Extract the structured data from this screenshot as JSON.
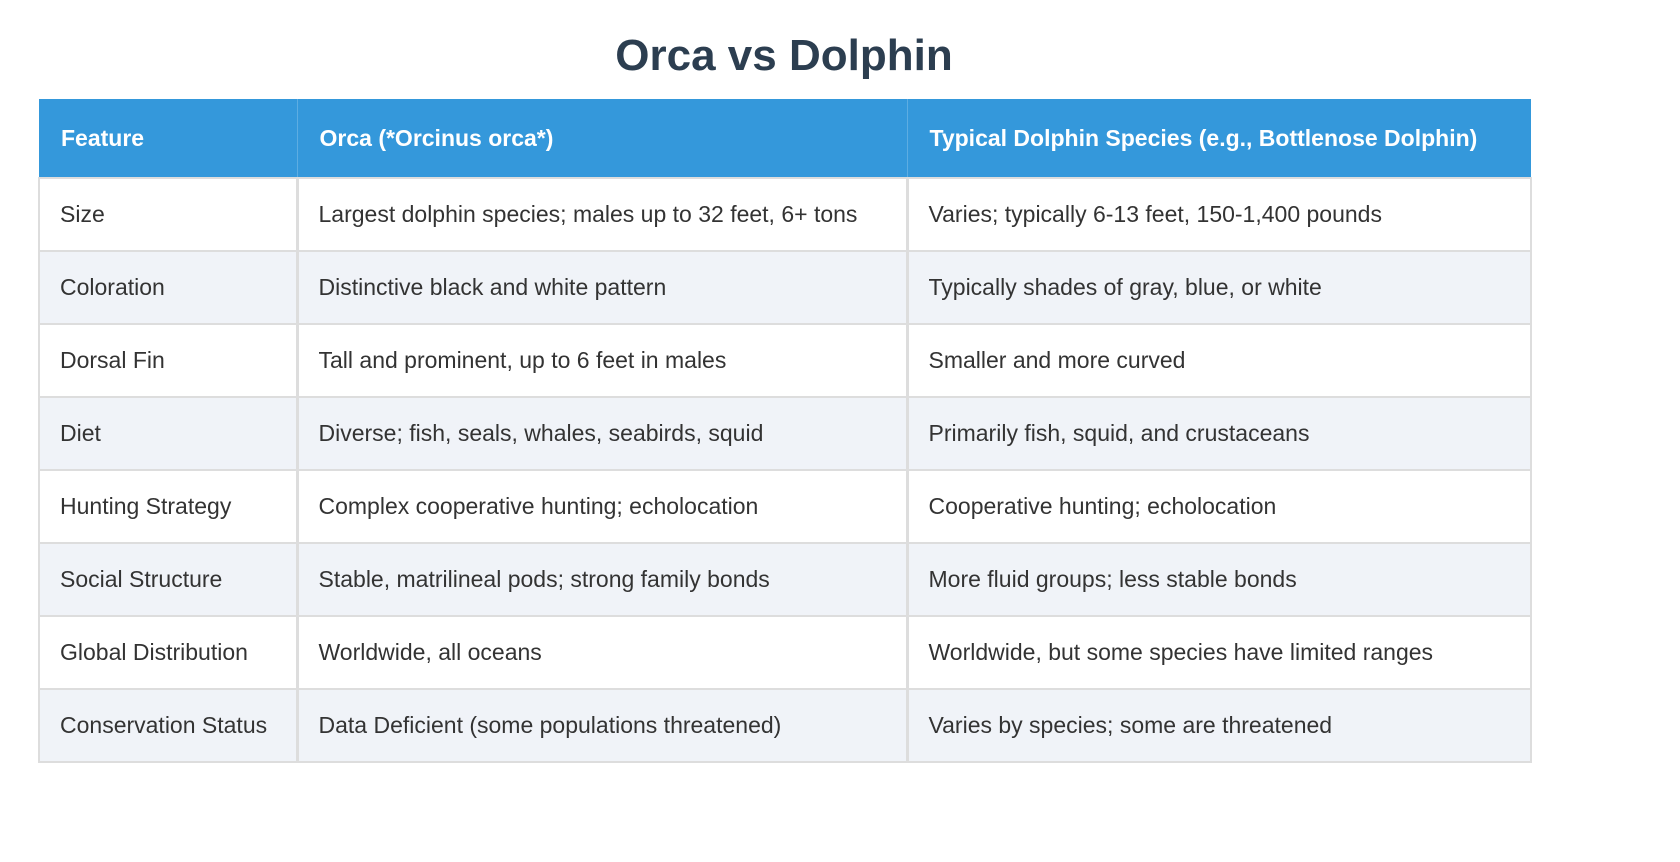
{
  "page": {
    "title": "Orca vs Dolphin"
  },
  "colors": {
    "title": "#2c3e50",
    "header_bg": "#3498db",
    "header_text": "#ffffff",
    "row_alt_bg": "#f0f3f8",
    "border": "#dddddd",
    "body_text": "#333333"
  },
  "table": {
    "headers": [
      "Feature",
      "Orca (*Orcinus orca*)",
      "Typical Dolphin Species (e.g., Bottlenose Dolphin)"
    ],
    "rows": [
      [
        "Size",
        "Largest dolphin species; males up to 32 feet, 6+ tons",
        "Varies; typically 6-13 feet, 150-1,400 pounds"
      ],
      [
        "Coloration",
        "Distinctive black and white pattern",
        "Typically shades of gray, blue, or white"
      ],
      [
        "Dorsal Fin",
        "Tall and prominent, up to 6 feet in males",
        "Smaller and more curved"
      ],
      [
        "Diet",
        "Diverse; fish, seals, whales, seabirds, squid",
        "Primarily fish, squid, and crustaceans"
      ],
      [
        "Hunting Strategy",
        "Complex cooperative hunting; echolocation",
        "Cooperative hunting; echolocation"
      ],
      [
        "Social Structure",
        "Stable, matrilineal pods; strong family bonds",
        "More fluid groups; less stable bonds"
      ],
      [
        "Global Distribution",
        "Worldwide, all oceans",
        "Worldwide, but some species have limited ranges"
      ],
      [
        "Conservation Status",
        "Data Deficient (some populations threatened)",
        "Varies by species; some are threatened"
      ]
    ]
  }
}
